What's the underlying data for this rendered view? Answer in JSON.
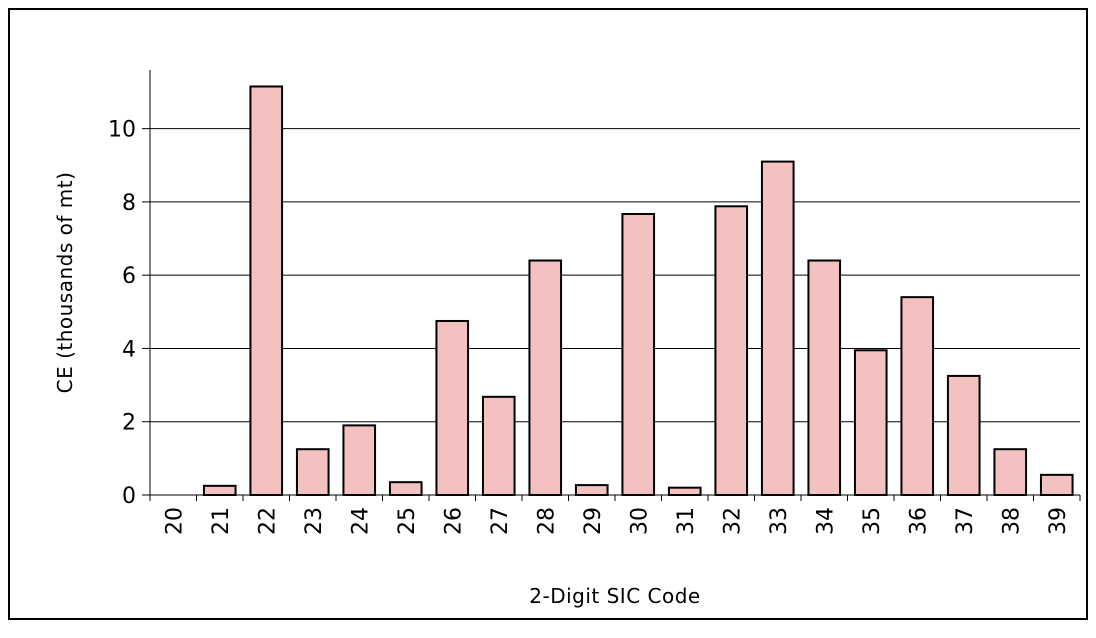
{
  "chart_data": {
    "type": "bar",
    "title": "",
    "xlabel": "2-Digit SIC Code",
    "ylabel": "CE (thousands of mt)",
    "categories": [
      "20",
      "21",
      "22",
      "23",
      "24",
      "25",
      "26",
      "27",
      "28",
      "29",
      "30",
      "31",
      "32",
      "33",
      "34",
      "35",
      "36",
      "37",
      "38",
      "39"
    ],
    "values": [
      0,
      0.25,
      11.15,
      1.25,
      1.9,
      0.35,
      4.75,
      2.68,
      6.4,
      0.27,
      7.67,
      0.2,
      7.88,
      9.1,
      6.4,
      3.95,
      5.4,
      3.25,
      1.25,
      0.55
    ],
    "ylim": [
      0,
      11.6
    ],
    "yticks": [
      0,
      2,
      4,
      6,
      8,
      10
    ],
    "grid": true,
    "legend": "none",
    "bar_fill": "#f4c1c1",
    "bar_stroke": "#000000"
  }
}
